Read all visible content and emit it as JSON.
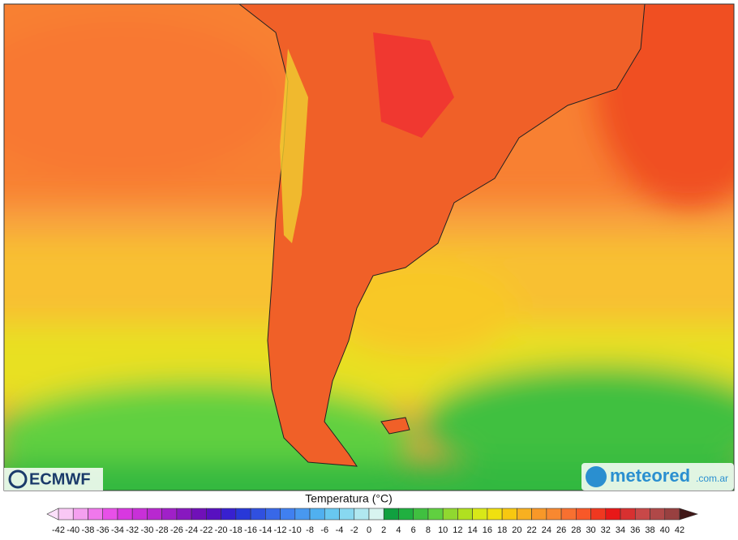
{
  "map": {
    "logo_left": "ECMWF",
    "logo_right": "meteored",
    "logo_right_suffix": ".com.ar"
  },
  "colorbar": {
    "title": "Temperatura (°C)",
    "ticks": [
      -42,
      -40,
      -38,
      -36,
      -34,
      -32,
      -30,
      -28,
      -26,
      -24,
      -22,
      -20,
      -18,
      -16,
      -14,
      -12,
      -10,
      -8,
      -6,
      -4,
      -2,
      0,
      2,
      4,
      6,
      8,
      10,
      12,
      14,
      16,
      18,
      20,
      22,
      24,
      26,
      28,
      30,
      32,
      34,
      36,
      38,
      40,
      42
    ],
    "colors": [
      "#f9c8f5",
      "#f5a0f0",
      "#f078ec",
      "#e850e8",
      "#d838e0",
      "#c830d8",
      "#b828d0",
      "#a020c8",
      "#8818c0",
      "#7010b8",
      "#5810c0",
      "#3820d0",
      "#2838d8",
      "#3050e0",
      "#3868e8",
      "#4080f0",
      "#4898f0",
      "#50b0f0",
      "#68c8f0",
      "#88d8f0",
      "#b0e8f0",
      "#d8f4f0",
      "#10a040",
      "#20b040",
      "#40c040",
      "#60d040",
      "#90d830",
      "#b0e020",
      "#d8e818",
      "#f0e010",
      "#f8c810",
      "#f8b020",
      "#f89828",
      "#f88830",
      "#f87030",
      "#f85828",
      "#f03820",
      "#e81818",
      "#d83030",
      "#c84848",
      "#b04848",
      "#984040"
    ],
    "under_color": "#fce0fa",
    "over_color": "#401818"
  }
}
